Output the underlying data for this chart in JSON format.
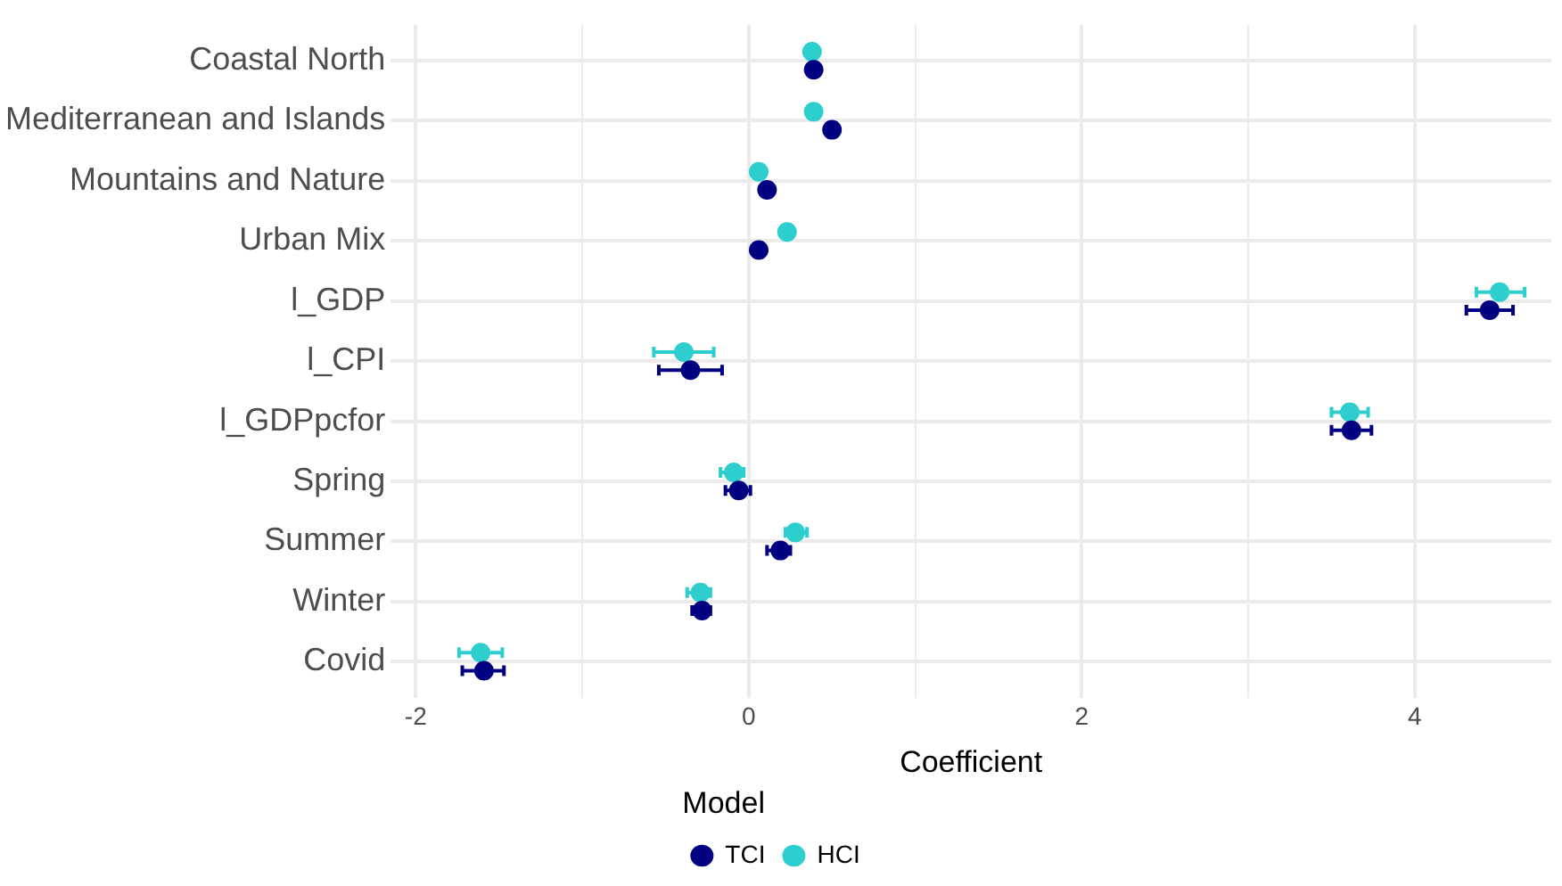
{
  "chart_data": {
    "type": "scatter",
    "orientation": "horizontal",
    "xlabel": "Coefficient",
    "legend_title": "Model",
    "legend": "bottom",
    "grid": true,
    "marker": "circle",
    "categories": [
      "Coastal North",
      "Mediterranean and Islands",
      "Mountains and Nature",
      "Urban Mix",
      "l_GDP",
      "l_CPI",
      "l_GDPpcfor",
      "Spring",
      "Summer",
      "Winter",
      "Covid"
    ],
    "xlim": [
      -2.15,
      4.82
    ],
    "xticks": [
      -2,
      {
        "value": -1,
        "label": null
      },
      0,
      {
        "value": 1,
        "label": null
      },
      2,
      {
        "value": 3,
        "label": null
      },
      4
    ],
    "series": [
      {
        "name": "TCI",
        "color": "#000080",
        "values": [
          0.39,
          0.5,
          0.11,
          0.06,
          4.45,
          -0.35,
          3.62,
          -0.06,
          0.19,
          -0.28,
          -1.59
        ],
        "errors": [
          null,
          null,
          null,
          null,
          [
            4.31,
            4.59
          ],
          [
            -0.54,
            -0.16
          ],
          [
            3.5,
            3.74
          ],
          [
            -0.14,
            0.01
          ],
          [
            0.11,
            0.25
          ],
          [
            -0.34,
            -0.23
          ],
          [
            -1.72,
            -1.47
          ]
        ]
      },
      {
        "name": "HCI",
        "color": "#2ecece",
        "values": [
          0.38,
          0.39,
          0.06,
          0.23,
          4.51,
          -0.39,
          3.61,
          -0.09,
          0.28,
          -0.29,
          -1.61
        ],
        "errors": [
          null,
          null,
          null,
          null,
          [
            4.37,
            4.66
          ],
          [
            -0.57,
            -0.21
          ],
          [
            3.5,
            3.72
          ],
          [
            -0.17,
            -0.03
          ],
          [
            0.22,
            0.35
          ],
          [
            -0.37,
            -0.23
          ],
          [
            -1.74,
            -1.48
          ]
        ]
      }
    ]
  }
}
